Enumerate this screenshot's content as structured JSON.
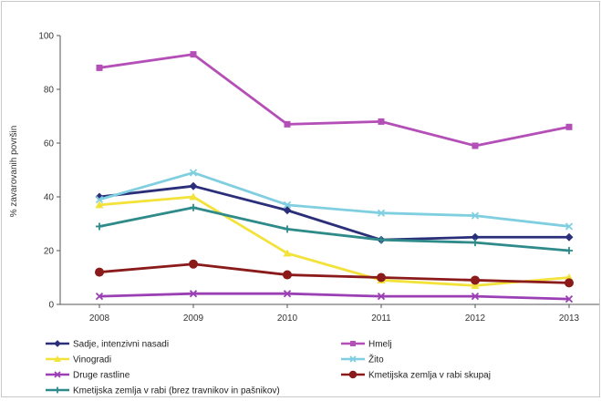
{
  "chart_data": {
    "type": "line",
    "x": [
      "2008",
      "2009",
      "2010",
      "2011",
      "2012",
      "2013"
    ],
    "ylabel": "% zavarovanih površin",
    "ylim": [
      0,
      100
    ],
    "yticks": [
      "0",
      "20",
      "40",
      "60",
      "80",
      "100"
    ],
    "grid": false,
    "legend_position": "bottom",
    "series": [
      {
        "name": "Sadje, intenzivni nasadi",
        "values": [
          40,
          44,
          35,
          24,
          25,
          25
        ],
        "color": "#2b2f7a",
        "marker": "diamond"
      },
      {
        "name": "Hmelj",
        "values": [
          88,
          93,
          67,
          68,
          59,
          66
        ],
        "color": "#b44fb7",
        "marker": "square"
      },
      {
        "name": "Vinogradi",
        "values": [
          37,
          40,
          19,
          9,
          7,
          10
        ],
        "color": "#f2e23a",
        "marker": "triangle"
      },
      {
        "name": "Žito",
        "values": [
          39,
          49,
          37,
          34,
          33,
          29
        ],
        "color": "#7fcfe0",
        "marker": "x"
      },
      {
        "name": "Druge rastline",
        "values": [
          3,
          4,
          4,
          3,
          3,
          2
        ],
        "color": "#9b3fb5",
        "marker": "x"
      },
      {
        "name": "Kmetijska zemlja v rabi skupaj",
        "values": [
          12,
          15,
          11,
          10,
          9,
          8
        ],
        "color": "#8b1a1a",
        "marker": "circle"
      },
      {
        "name": "Kmetijska zemlja v rabi (brez travnikov in pašnikov)",
        "values": [
          29,
          36,
          28,
          24,
          23,
          20
        ],
        "color": "#2f8a8a",
        "marker": "plus"
      }
    ]
  }
}
